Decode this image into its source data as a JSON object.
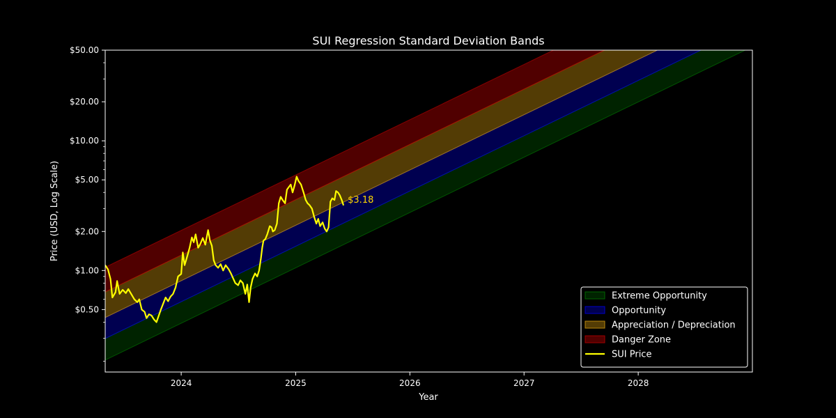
{
  "chart_data": {
    "type": "area",
    "title": "SUI Regression Standard Deviation Bands",
    "xlabel": "Year",
    "ylabel": "Price (USD, Log Scale)",
    "y_scale": "log",
    "xlim": [
      "2023-05-03",
      "2028-12-31"
    ],
    "ylim": [
      0.165,
      50
    ],
    "x_ticks": [
      {
        "date": "2024-01-01",
        "label": "2024"
      },
      {
        "date": "2025-01-01",
        "label": "2025"
      },
      {
        "date": "2026-01-01",
        "label": "2026"
      },
      {
        "date": "2027-01-01",
        "label": "2027"
      },
      {
        "date": "2028-01-01",
        "label": "2028"
      }
    ],
    "y_ticks": [
      {
        "value": 0.5,
        "label": "$0.50"
      },
      {
        "value": 1,
        "label": "$1.00"
      },
      {
        "value": 2,
        "label": "$2.00"
      },
      {
        "value": 5,
        "label": "$5.00"
      },
      {
        "value": 10,
        "label": "$10.00"
      },
      {
        "value": 20,
        "label": "$20.00"
      },
      {
        "value": 50,
        "label": "$50.00"
      }
    ],
    "grid": false,
    "legend_position": "lower-right",
    "background_color": "#000000",
    "bands": {
      "x": [
        "2023-05-03",
        "2028-12-31"
      ],
      "levels": [
        {
          "name": "lower",
          "values": [
            0.204,
            53.2
          ]
        },
        {
          "name": "b1",
          "values": [
            0.299,
            77.9
          ]
        },
        {
          "name": "b2",
          "values": [
            0.434,
            113.2
          ]
        },
        {
          "name": "b3",
          "values": [
            0.684,
            178.3
          ]
        },
        {
          "name": "upper",
          "values": [
            1.06,
            276.4
          ]
        }
      ]
    },
    "series": [
      {
        "name": "Extreme Opportunity",
        "kind": "band",
        "from": "lower",
        "to": "b1",
        "color": "#006400",
        "opacity": 0.35
      },
      {
        "name": "Opportunity",
        "kind": "band",
        "from": "b1",
        "to": "b2",
        "color": "#0000c8",
        "opacity": 0.4
      },
      {
        "name": "Appreciation / Depreciation",
        "kind": "band",
        "from": "b2",
        "to": "b3",
        "color": "#b8860b",
        "opacity": 0.45
      },
      {
        "name": "Danger Zone",
        "kind": "band",
        "from": "b3",
        "to": "upper",
        "color": "#a00000",
        "opacity": 0.5
      },
      {
        "name": "SUI Price",
        "kind": "line",
        "color": "#ffff00",
        "points": [
          [
            "2023-05-03",
            1.1
          ],
          [
            "2023-05-12",
            1.02
          ],
          [
            "2023-05-20",
            0.86
          ],
          [
            "2023-05-26",
            0.62
          ],
          [
            "2023-06-05",
            0.68
          ],
          [
            "2023-06-10",
            0.83
          ],
          [
            "2023-06-18",
            0.66
          ],
          [
            "2023-06-28",
            0.71
          ],
          [
            "2023-07-08",
            0.67
          ],
          [
            "2023-07-16",
            0.72
          ],
          [
            "2023-07-25",
            0.66
          ],
          [
            "2023-08-04",
            0.6
          ],
          [
            "2023-08-14",
            0.57
          ],
          [
            "2023-08-20",
            0.6
          ],
          [
            "2023-08-28",
            0.5
          ],
          [
            "2023-09-06",
            0.48
          ],
          [
            "2023-09-12",
            0.43
          ],
          [
            "2023-09-20",
            0.46
          ],
          [
            "2023-09-28",
            0.45
          ],
          [
            "2023-10-06",
            0.42
          ],
          [
            "2023-10-14",
            0.4
          ],
          [
            "2023-10-20",
            0.44
          ],
          [
            "2023-10-28",
            0.5
          ],
          [
            "2023-11-05",
            0.56
          ],
          [
            "2023-11-12",
            0.62
          ],
          [
            "2023-11-20",
            0.58
          ],
          [
            "2023-11-28",
            0.63
          ],
          [
            "2023-12-06",
            0.66
          ],
          [
            "2023-12-14",
            0.74
          ],
          [
            "2023-12-22",
            0.9
          ],
          [
            "2024-01-01",
            0.94
          ],
          [
            "2024-01-06",
            1.38
          ],
          [
            "2024-01-12",
            1.1
          ],
          [
            "2024-01-20",
            1.28
          ],
          [
            "2024-01-28",
            1.5
          ],
          [
            "2024-02-04",
            1.8
          ],
          [
            "2024-02-10",
            1.65
          ],
          [
            "2024-02-16",
            1.9
          ],
          [
            "2024-02-24",
            1.5
          ],
          [
            "2024-03-02",
            1.6
          ],
          [
            "2024-03-10",
            1.78
          ],
          [
            "2024-03-18",
            1.58
          ],
          [
            "2024-03-27",
            2.05
          ],
          [
            "2024-04-02",
            1.7
          ],
          [
            "2024-04-08",
            1.55
          ],
          [
            "2024-04-14",
            1.2
          ],
          [
            "2024-04-20",
            1.1
          ],
          [
            "2024-04-28",
            1.05
          ],
          [
            "2024-05-06",
            1.12
          ],
          [
            "2024-05-14",
            1.0
          ],
          [
            "2024-05-22",
            1.1
          ],
          [
            "2024-06-01",
            1.02
          ],
          [
            "2024-06-08",
            0.95
          ],
          [
            "2024-06-14",
            0.88
          ],
          [
            "2024-06-22",
            0.8
          ],
          [
            "2024-07-01",
            0.77
          ],
          [
            "2024-07-08",
            0.84
          ],
          [
            "2024-07-16",
            0.8
          ],
          [
            "2024-07-24",
            0.66
          ],
          [
            "2024-07-30",
            0.78
          ],
          [
            "2024-08-05",
            0.57
          ],
          [
            "2024-08-10",
            0.74
          ],
          [
            "2024-08-16",
            0.86
          ],
          [
            "2024-08-24",
            0.95
          ],
          [
            "2024-08-31",
            0.9
          ],
          [
            "2024-09-06",
            1.0
          ],
          [
            "2024-09-12",
            1.25
          ],
          [
            "2024-09-16",
            1.5
          ],
          [
            "2024-09-20",
            1.7
          ],
          [
            "2024-09-26",
            1.75
          ],
          [
            "2024-10-02",
            1.9
          ],
          [
            "2024-10-10",
            2.2
          ],
          [
            "2024-10-16",
            2.15
          ],
          [
            "2024-10-20",
            2.0
          ],
          [
            "2024-10-26",
            2.05
          ],
          [
            "2024-11-02",
            2.3
          ],
          [
            "2024-11-08",
            3.3
          ],
          [
            "2024-11-14",
            3.7
          ],
          [
            "2024-11-20",
            3.5
          ],
          [
            "2024-11-28",
            3.3
          ],
          [
            "2024-12-04",
            4.2
          ],
          [
            "2024-12-10",
            4.4
          ],
          [
            "2024-12-16",
            4.6
          ],
          [
            "2024-12-22",
            4.0
          ],
          [
            "2024-12-28",
            4.5
          ],
          [
            "2025-01-04",
            5.3
          ],
          [
            "2025-01-10",
            4.9
          ],
          [
            "2025-01-18",
            4.6
          ],
          [
            "2025-01-26",
            4.0
          ],
          [
            "2025-02-02",
            3.5
          ],
          [
            "2025-02-08",
            3.3
          ],
          [
            "2025-02-14",
            3.2
          ],
          [
            "2025-02-22",
            3.0
          ],
          [
            "2025-03-01",
            2.6
          ],
          [
            "2025-03-08",
            2.3
          ],
          [
            "2025-03-14",
            2.5
          ],
          [
            "2025-03-20",
            2.2
          ],
          [
            "2025-03-28",
            2.35
          ],
          [
            "2025-04-04",
            2.1
          ],
          [
            "2025-04-10",
            2.0
          ],
          [
            "2025-04-16",
            2.15
          ],
          [
            "2025-04-22",
            3.4
          ],
          [
            "2025-04-28",
            3.6
          ],
          [
            "2025-05-05",
            3.5
          ],
          [
            "2025-05-10",
            4.1
          ],
          [
            "2025-05-16",
            4.0
          ],
          [
            "2025-05-22",
            3.8
          ],
          [
            "2025-05-28",
            3.5
          ],
          [
            "2025-06-03",
            3.18
          ]
        ],
        "end_label": "$3.18"
      }
    ]
  }
}
